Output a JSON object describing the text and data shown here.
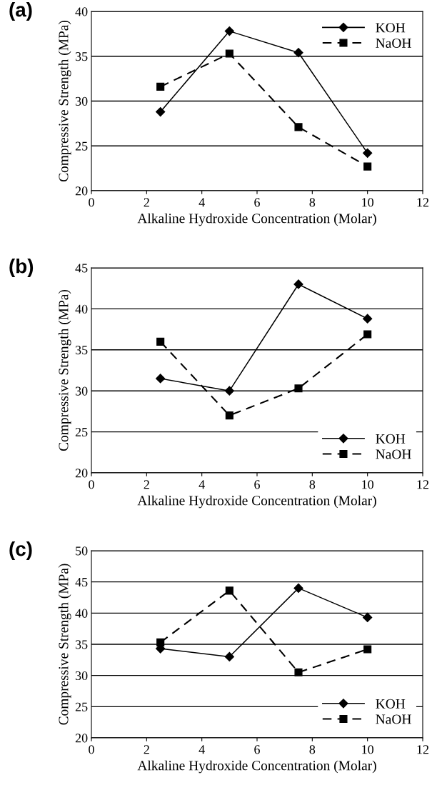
{
  "chart_data": [
    {
      "type": "line",
      "title": "(a)",
      "xlabel": "Alkaline Hydroxide Concentration (Molar)",
      "ylabel": "Compressive Strength (MPa)",
      "x": [
        2.5,
        5,
        7.5,
        10
      ],
      "xlim": [
        0,
        12
      ],
      "xticks": [
        0,
        2,
        4,
        6,
        8,
        10,
        12
      ],
      "ylim": [
        20,
        40
      ],
      "yticks": [
        20,
        25,
        30,
        35,
        40
      ],
      "grid": "y",
      "legend": "top right",
      "series": [
        {
          "name": "KOH",
          "color": "#000000",
          "marker": "diamond",
          "line_style": "solid",
          "values": [
            28.8,
            37.8,
            35.4,
            24.2
          ]
        },
        {
          "name": "NaOH",
          "color": "#000000",
          "marker": "square",
          "line_style": "dashed",
          "values": [
            31.6,
            35.3,
            27.1,
            22.7
          ]
        }
      ]
    },
    {
      "type": "line",
      "title": "(b)",
      "xlabel": "Alkaline Hydroxide Concentration (Molar)",
      "ylabel": "Compressive Strength (MPa)",
      "x": [
        2.5,
        5,
        7.5,
        10
      ],
      "xlim": [
        0,
        12
      ],
      "xticks": [
        0,
        2,
        4,
        6,
        8,
        10,
        12
      ],
      "ylim": [
        20,
        45
      ],
      "yticks": [
        20,
        25,
        30,
        35,
        40,
        45
      ],
      "grid": "y",
      "legend": "bottom right",
      "series": [
        {
          "name": "KOH",
          "color": "#000000",
          "marker": "diamond",
          "line_style": "solid",
          "values": [
            31.5,
            30.0,
            43.0,
            38.8
          ]
        },
        {
          "name": "NaOH",
          "color": "#000000",
          "marker": "square",
          "line_style": "dashed",
          "values": [
            36.0,
            27.0,
            30.3,
            36.9
          ]
        }
      ]
    },
    {
      "type": "line",
      "title": "(c)",
      "xlabel": "Alkaline Hydroxide Concentration (Molar)",
      "ylabel": "Compressive Strength (MPa)",
      "x": [
        2.5,
        5,
        7.5,
        10
      ],
      "xlim": [
        0,
        12
      ],
      "xticks": [
        0,
        2,
        4,
        6,
        8,
        10,
        12
      ],
      "ylim": [
        20,
        50
      ],
      "yticks": [
        20,
        25,
        30,
        35,
        40,
        45,
        50
      ],
      "grid": "y",
      "legend": "bottom right",
      "series": [
        {
          "name": "KOH",
          "color": "#000000",
          "marker": "diamond",
          "line_style": "solid",
          "values": [
            34.3,
            33.0,
            44.0,
            39.3
          ]
        },
        {
          "name": "NaOH",
          "color": "#000000",
          "marker": "square",
          "line_style": "dashed",
          "values": [
            35.3,
            43.6,
            30.5,
            34.2
          ]
        }
      ]
    }
  ]
}
